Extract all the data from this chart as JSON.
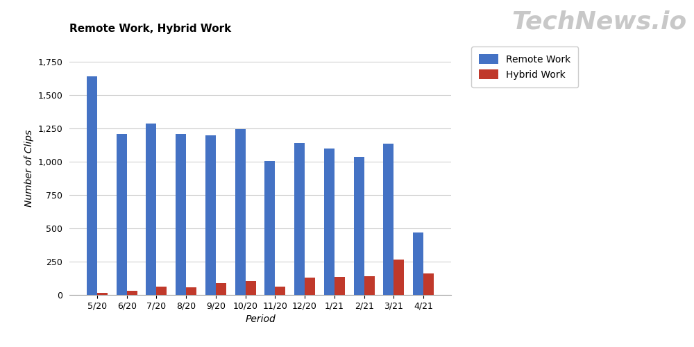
{
  "title": "Remote Work, Hybrid Work",
  "xlabel": "Period",
  "ylabel": "Number of Clips",
  "categories": [
    "5/20",
    "6/20",
    "7/20",
    "8/20",
    "9/20",
    "10/20",
    "11/20",
    "12/20",
    "1/21",
    "2/21",
    "3/21",
    "4/21"
  ],
  "remote_work": [
    1640,
    1210,
    1285,
    1210,
    1195,
    1245,
    1005,
    1140,
    1100,
    1035,
    1135,
    470
  ],
  "hybrid_work": [
    15,
    30,
    60,
    55,
    90,
    105,
    65,
    130,
    135,
    140,
    265,
    160
  ],
  "remote_color": "#4472C4",
  "hybrid_color": "#C0392B",
  "ylim": [
    0,
    1900
  ],
  "yticks": [
    0,
    250,
    500,
    750,
    1000,
    1250,
    1500,
    1750
  ],
  "legend_labels": [
    "Remote Work",
    "Hybrid Work"
  ],
  "watermark": "TechNews.io",
  "bg_color": "#ffffff",
  "grid_color": "#d0d0d0",
  "bar_width": 0.35,
  "title_fontsize": 11,
  "axis_label_fontsize": 10,
  "tick_fontsize": 9,
  "legend_fontsize": 10
}
